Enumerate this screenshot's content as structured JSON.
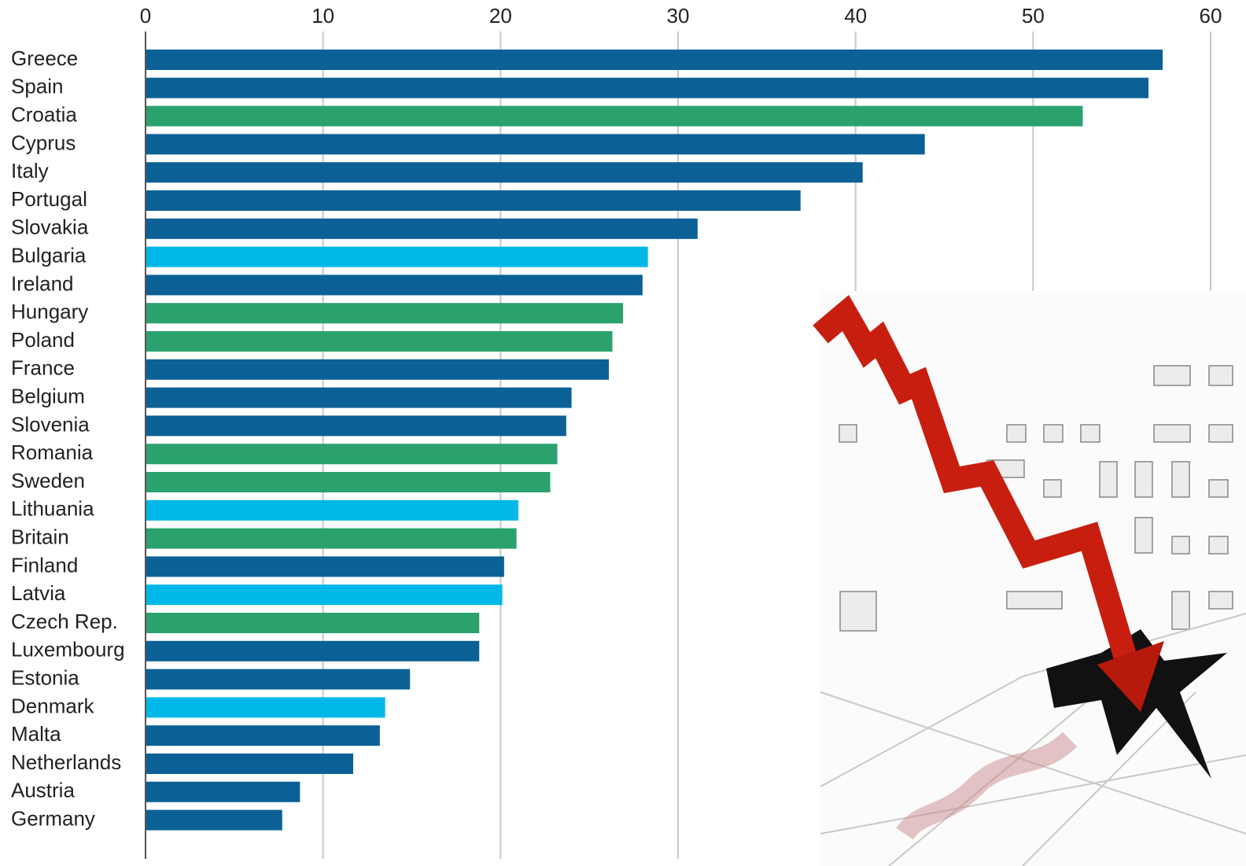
{
  "chart_data": {
    "type": "barh",
    "categories": [
      "Greece",
      "Spain",
      "Croatia",
      "Cyprus",
      "Italy",
      "Portugal",
      "Slovakia",
      "Bulgaria",
      "Ireland",
      "Hungary",
      "Poland",
      "France",
      "Belgium",
      "Slovenia",
      "Romania",
      "Sweden",
      "Lithuania",
      "Britain",
      "Finland",
      "Latvia",
      "Czech Rep.",
      "Luxembourg",
      "Estonia",
      "Denmark",
      "Malta",
      "Netherlands",
      "Austria",
      "Germany"
    ],
    "values": [
      57.3,
      56.5,
      52.8,
      43.9,
      40.4,
      36.9,
      31.1,
      28.3,
      28.0,
      26.9,
      26.3,
      26.1,
      24.0,
      23.7,
      23.2,
      22.8,
      21.0,
      20.9,
      20.2,
      20.1,
      18.8,
      18.8,
      14.9,
      13.5,
      13.2,
      11.7,
      8.7,
      7.7
    ],
    "colors": [
      "#0b6196",
      "#0b6196",
      "#2ba26e",
      "#0b6196",
      "#0b6196",
      "#0b6196",
      "#0b6196",
      "#00b8e8",
      "#0b6196",
      "#2ba26e",
      "#2ba26e",
      "#0b6196",
      "#0b6196",
      "#0b6196",
      "#2ba26e",
      "#2ba26e",
      "#00b8e8",
      "#2ba26e",
      "#0b6196",
      "#00b8e8",
      "#2ba26e",
      "#0b6196",
      "#0b6196",
      "#00b8e8",
      "#0b6196",
      "#0b6196",
      "#0b6196",
      "#0b6196"
    ],
    "xlim": [
      0,
      60
    ],
    "xticks": [
      0,
      10,
      20,
      30,
      40,
      50,
      60
    ],
    "grid": true
  }
}
